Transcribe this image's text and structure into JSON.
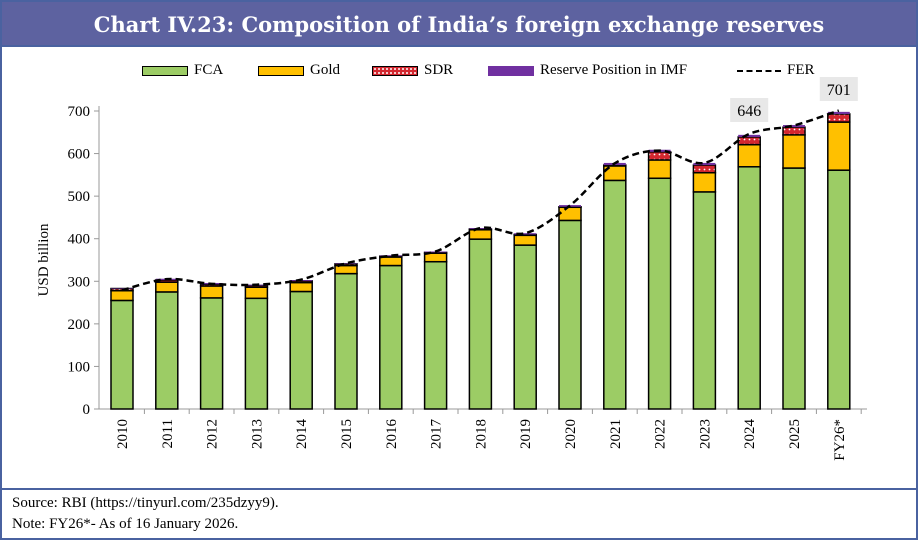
{
  "chart_data": {
    "type": "bar",
    "stacked": true,
    "title": "Chart IV.23: Composition of India’s foreign exchange reserves",
    "ylabel": "USD billion",
    "ylim": [
      0,
      700
    ],
    "yticks": [
      0,
      100,
      200,
      300,
      400,
      500,
      600,
      700
    ],
    "categories": [
      "2010",
      "2011",
      "2012",
      "2013",
      "2014",
      "2015",
      "2016",
      "2017",
      "2018",
      "2019",
      "2020",
      "2021",
      "2022",
      "2023",
      "2024",
      "2025",
      "FY26*"
    ],
    "series": [
      {
        "name": "FCA",
        "color": "#9ccc65",
        "values": [
          255,
          275,
          261,
          260,
          276,
          318,
          337,
          346,
          399,
          385,
          443,
          537,
          542,
          510,
          569,
          566,
          561
        ]
      },
      {
        "name": "Gold",
        "color": "#ffc000",
        "values": [
          23,
          23,
          28,
          26,
          21,
          19,
          20,
          20,
          22,
          23,
          31,
          34,
          43,
          45,
          52,
          78,
          113
        ]
      },
      {
        "name": "SDR",
        "color": "#d3272f",
        "values": [
          5,
          5,
          4,
          4,
          4,
          4,
          2,
          2,
          2,
          2,
          1,
          2,
          19,
          18,
          18,
          18,
          19
        ]
      },
      {
        "name": "Reserve Position in IMF",
        "color": "#7030a0",
        "values": [
          1,
          3,
          3,
          2,
          2,
          1,
          2,
          2,
          2,
          3,
          4,
          5,
          5,
          5,
          5,
          5,
          5
        ]
      }
    ],
    "line": {
      "name": "FER",
      "values": [
        279,
        305,
        294,
        292,
        304,
        342,
        360,
        370,
        425,
        413,
        478,
        577,
        607,
        578,
        646,
        666,
        701
      ]
    },
    "annotations": [
      "646",
      "701"
    ],
    "legend": "top"
  },
  "title": "Chart IV.23: Composition of India’s foreign exchange reserves",
  "footer": {
    "source": "Source: RBI (https://tinyurl.com/235dzyy9).",
    "note": "Note: FY26*- As of 16 January 2026."
  }
}
